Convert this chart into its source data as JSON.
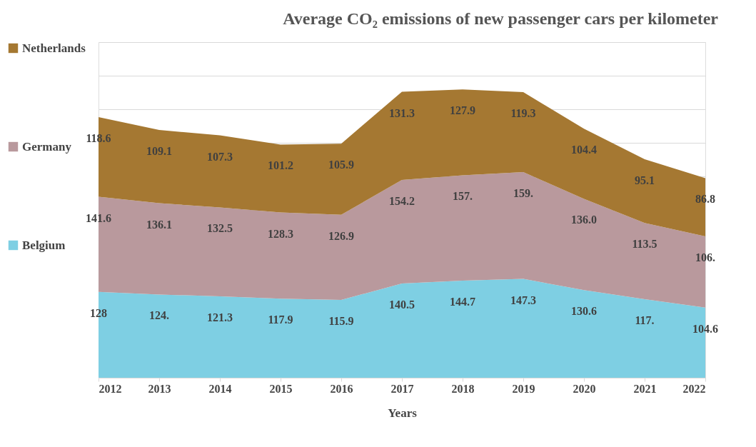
{
  "chart_data": {
    "type": "area",
    "title": "Average CO₂  emissions of new passenger cars per kilometer",
    "xlabel": "Years",
    "stacked": true,
    "legend": "left",
    "grid": "y",
    "tick_labels": "x",
    "x": [
      2012,
      2013,
      2014,
      2015,
      2016,
      2017,
      2018,
      2019,
      2020,
      2021,
      2022
    ],
    "xlim": [
      2012,
      2022
    ],
    "xticks": [
      2012,
      2013,
      2014,
      2015,
      2016,
      2017,
      2018,
      2019,
      2020,
      2021,
      2022
    ],
    "ylim": [
      0,
      500
    ],
    "series": [
      {
        "name": "Belgium",
        "color": "#7ecfe3",
        "values": [
          128,
          124,
          121.3,
          117.9,
          115.9,
          140.5,
          144.7,
          147.3,
          130.6,
          117,
          104.6
        ],
        "value_labels": [
          "128",
          "124.",
          "121.3",
          "117.9",
          "115.9",
          "140.5",
          "144.7",
          "147.3",
          "130.6",
          "117.",
          "104.6"
        ]
      },
      {
        "name": "Germany",
        "color": "#b9999d",
        "values": [
          141.6,
          136.1,
          132.5,
          128.3,
          126.9,
          154.2,
          157,
          159,
          136.0,
          113.5,
          106
        ],
        "value_labels": [
          "141.6",
          "136.1",
          "132.5",
          "128.3",
          "126.9",
          "154.2",
          "157.",
          "159.",
          "136.0",
          "113.5",
          "106."
        ]
      },
      {
        "name": "Netherlands",
        "color": "#a57832",
        "values": [
          118.6,
          109.1,
          107.3,
          101.2,
          105.9,
          131.3,
          127.9,
          119.3,
          104.4,
          95.1,
          86.8
        ],
        "value_labels": [
          "118.6",
          "109.1",
          "107.3",
          "101.2",
          "105.9",
          "131.3",
          "127.9",
          "119.3",
          "104.4",
          "95.1",
          "86.8"
        ]
      }
    ]
  }
}
